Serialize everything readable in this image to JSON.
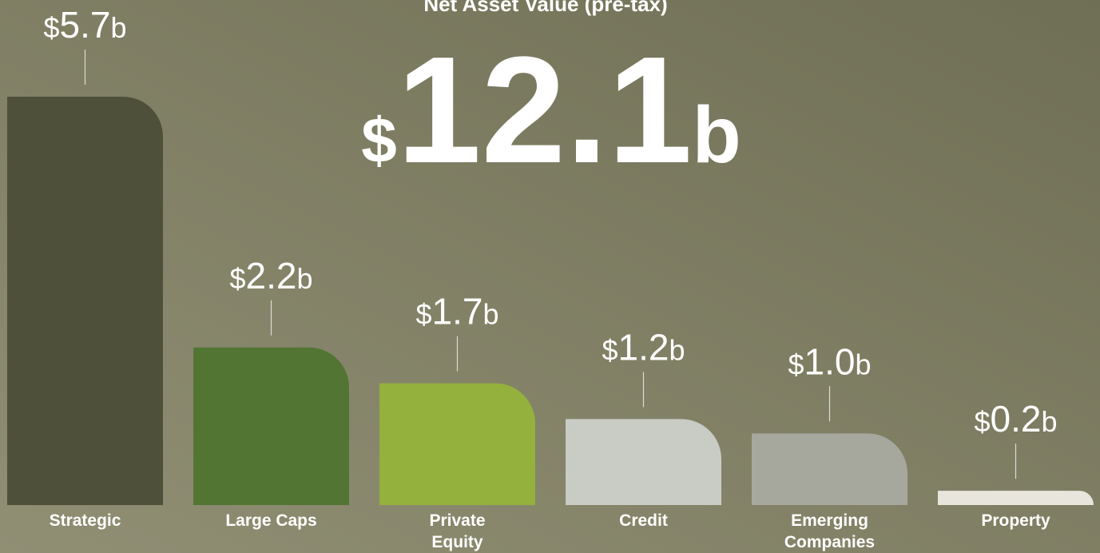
{
  "chart_data": {
    "type": "bar",
    "title": "Net Asset Value (pre-tax)",
    "total": "$12.1b",
    "categories": [
      "Strategic",
      "Large Caps",
      "Private Equity",
      "Credit",
      "Emerging Companies",
      "Property"
    ],
    "values": [
      5.7,
      2.2,
      1.7,
      1.2,
      1.0,
      0.2
    ],
    "value_labels": [
      "$5.7b",
      "$2.2b",
      "$1.7b",
      "$1.2b",
      "$1.0b",
      "$0.2b"
    ],
    "colors": [
      "#4f5039",
      "#537534",
      "#94b03d",
      "#c9cbc5",
      "#a6a79d",
      "#e8e5dc"
    ]
  }
}
